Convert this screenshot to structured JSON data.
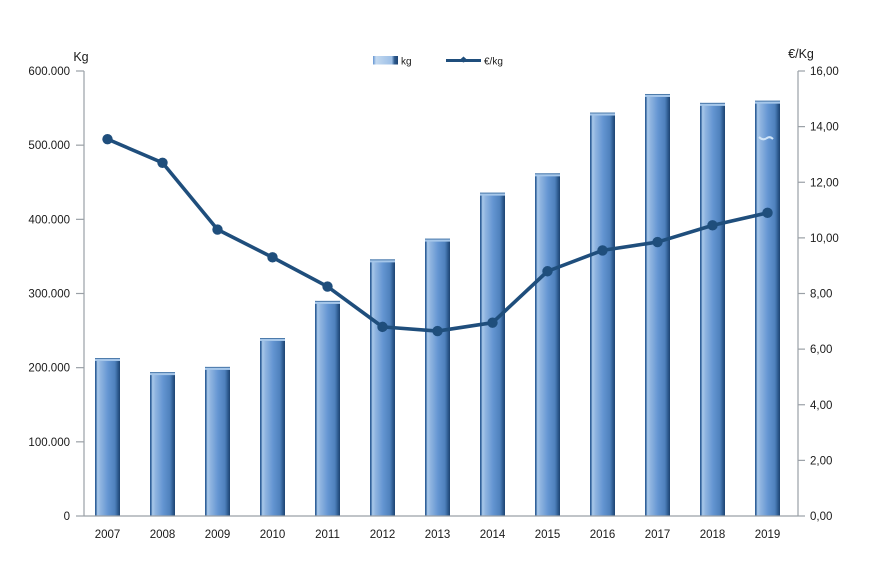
{
  "page": {
    "background": "#ffffff"
  },
  "chart_data": {
    "type": "bar",
    "subtype": "combo-bar-line-dual-axis",
    "categories": [
      "2007",
      "2008",
      "2009",
      "2010",
      "2011",
      "2012",
      "2013",
      "2014",
      "2015",
      "2016",
      "2017",
      "2018",
      "2019"
    ],
    "series": [
      {
        "name": "kg",
        "type": "bar",
        "axis": "left",
        "values": [
          213000,
          194000,
          201000,
          240000,
          290000,
          346000,
          374000,
          436000,
          462000,
          544000,
          569000,
          557000,
          560000
        ]
      },
      {
        "name": "€/kg",
        "type": "line",
        "axis": "right",
        "values": [
          13.55,
          12.7,
          10.3,
          9.3,
          8.25,
          6.8,
          6.65,
          6.95,
          8.8,
          9.55,
          9.85,
          10.45,
          10.9
        ]
      }
    ],
    "title": "",
    "xlabel": "",
    "left_axis": {
      "title": "Kg",
      "min": 0,
      "max": 600000,
      "tick_step": 100000,
      "tick_labels": [
        "0",
        "100.000",
        "200.000",
        "300.000",
        "400.000",
        "500.000",
        "600.000"
      ]
    },
    "right_axis": {
      "title": "€/Kg",
      "min": 0,
      "max": 16,
      "tick_step": 2,
      "tick_labels": [
        "0,00",
        "2,00",
        "4,00",
        "6,00",
        "8,00",
        "10,00",
        "12,00",
        "14,00",
        "16,00"
      ]
    },
    "legend": {
      "position": "top-center",
      "entries": [
        {
          "label": "kg",
          "swatch": "bar-swatch"
        },
        {
          "label": "€/kg",
          "swatch": "line-marker-swatch"
        }
      ]
    },
    "grid": "off",
    "colors": {
      "bar_main": "#5e91d0",
      "bar_highlight": "#a9c9ea",
      "bar_shadow": "#1d4371",
      "bar_edge": "#2f5e97",
      "bar_top_cap": "#a6c7ea",
      "line": "#1f4e7c",
      "marker": "#1f4e7c",
      "axis_line": "#9aa0a6",
      "text": "#1a1a1a",
      "artifact": "#cfe4f7"
    }
  }
}
